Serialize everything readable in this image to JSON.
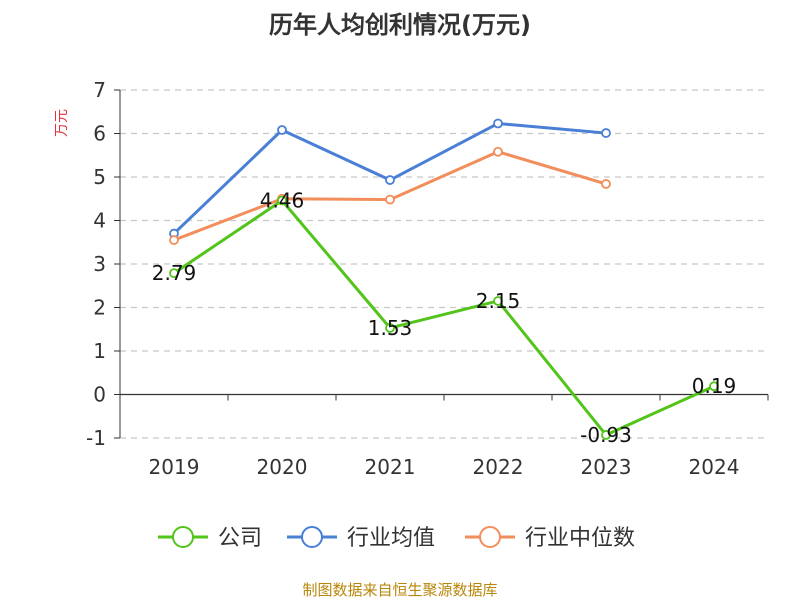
{
  "chart_data": {
    "type": "line",
    "title": "历年人均创利情况(万元)",
    "ylabel": "万元",
    "xlabel": "",
    "categories": [
      "2019",
      "2020",
      "2021",
      "2022",
      "2023",
      "2024"
    ],
    "ylim": [
      -1,
      7
    ],
    "yticks": [
      -1,
      0,
      1,
      2,
      3,
      4,
      5,
      6,
      7
    ],
    "grid": true,
    "legend_position": "bottom",
    "series": [
      {
        "name": "公司",
        "color": "#52c41a",
        "values": [
          2.79,
          4.46,
          1.53,
          2.15,
          -0.93,
          0.19
        ],
        "labels": [
          "2.79",
          "4.46",
          "1.53",
          "2.15",
          "-0.93",
          "0.19"
        ]
      },
      {
        "name": "行业均值",
        "color": "#4a7fd6",
        "values": [
          3.7,
          6.08,
          4.93,
          6.23,
          6.01,
          null
        ]
      },
      {
        "name": "行业中位数",
        "color": "#f28e5b",
        "values": [
          3.55,
          4.5,
          4.48,
          5.58,
          4.84,
          null
        ]
      }
    ],
    "source": "制图数据来自恒生聚源数据库"
  }
}
